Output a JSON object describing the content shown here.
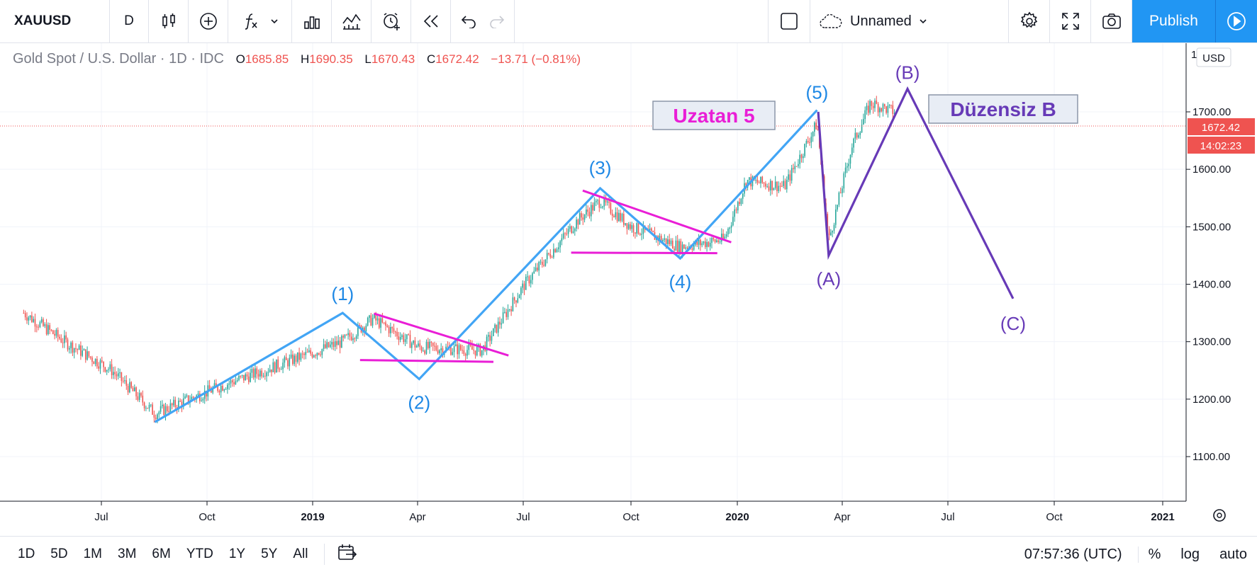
{
  "toolbar": {
    "symbol": "XAUUSD",
    "interval": "D",
    "layout_name": "Unnamed",
    "publish_label": "Publish"
  },
  "legend": {
    "title": "Gold Spot / U.S. Dollar",
    "timeframe": "1D",
    "source": "IDC",
    "o_label": "O",
    "o_value": "1685.85",
    "h_label": "H",
    "h_value": "1690.35",
    "l_label": "L",
    "l_value": "1670.43",
    "c_label": "C",
    "c_value": "1672.42",
    "change": "−13.71 (−0.81%)"
  },
  "price_axis": {
    "currency": "USD",
    "top_tick": "1",
    "ticks": [
      "1700.00",
      "1600.00",
      "1500.00",
      "1400.00",
      "1300.00",
      "1200.00",
      "1100.00"
    ],
    "last_price": "1672.42",
    "countdown": "14:02:23"
  },
  "time_axis": {
    "ticks": [
      "Jul",
      "Oct",
      "2019",
      "Apr",
      "Jul",
      "Oct",
      "2020",
      "Apr",
      "Jul",
      "Oct",
      "2021"
    ]
  },
  "annotations": {
    "wave1": "(1)",
    "wave2": "(2)",
    "wave3": "(3)",
    "wave4": "(4)",
    "wave5": "(5)",
    "waveA": "(A)",
    "waveB": "(B)",
    "waveC": "(C)",
    "label_extended": "Uzatan 5",
    "label_irregular": "Düzensiz B"
  },
  "bottom": {
    "ranges": [
      "1D",
      "5D",
      "1M",
      "3M",
      "6M",
      "YTD",
      "1Y",
      "5Y",
      "All"
    ],
    "clock": "07:57:36 (UTC)",
    "percent": "%",
    "log": "log",
    "auto": "auto"
  },
  "colors": {
    "accent": "#2196f3",
    "wave_blue": "#42a5f5",
    "wave_purple": "#673ab7",
    "trend_magenta": "#e91ed6",
    "down": "#ef5350",
    "up": "#26a69a"
  },
  "chart_data": {
    "type": "candlestick",
    "symbol": "XAUUSD",
    "x_range": [
      "2018-04",
      "2021-01"
    ],
    "y_range": [
      1040,
      1800
    ],
    "elliott_impulse": [
      {
        "label": "start",
        "date": "2018-08-16",
        "price": 1160
      },
      {
        "label": "(1)",
        "date": "2019-01-25",
        "price": 1350
      },
      {
        "label": "(2)",
        "date": "2019-04-01",
        "price": 1235
      },
      {
        "label": "(3)",
        "date": "2019-09-04",
        "price": 1567
      },
      {
        "label": "(4)",
        "date": "2019-11-12",
        "price": 1445
      },
      {
        "label": "(5)",
        "date": "2020-03-09",
        "price": 1703
      }
    ],
    "corrective_abc": [
      {
        "label": "start",
        "date": "2020-03-10",
        "price": 1700
      },
      {
        "label": "(A)",
        "date": "2020-03-19",
        "price": 1450
      },
      {
        "label": "(B)",
        "date": "2020-05-26",
        "price": 1740
      },
      {
        "label": "(C)",
        "date": "2020-08-25",
        "price": 1375
      }
    ]
  }
}
